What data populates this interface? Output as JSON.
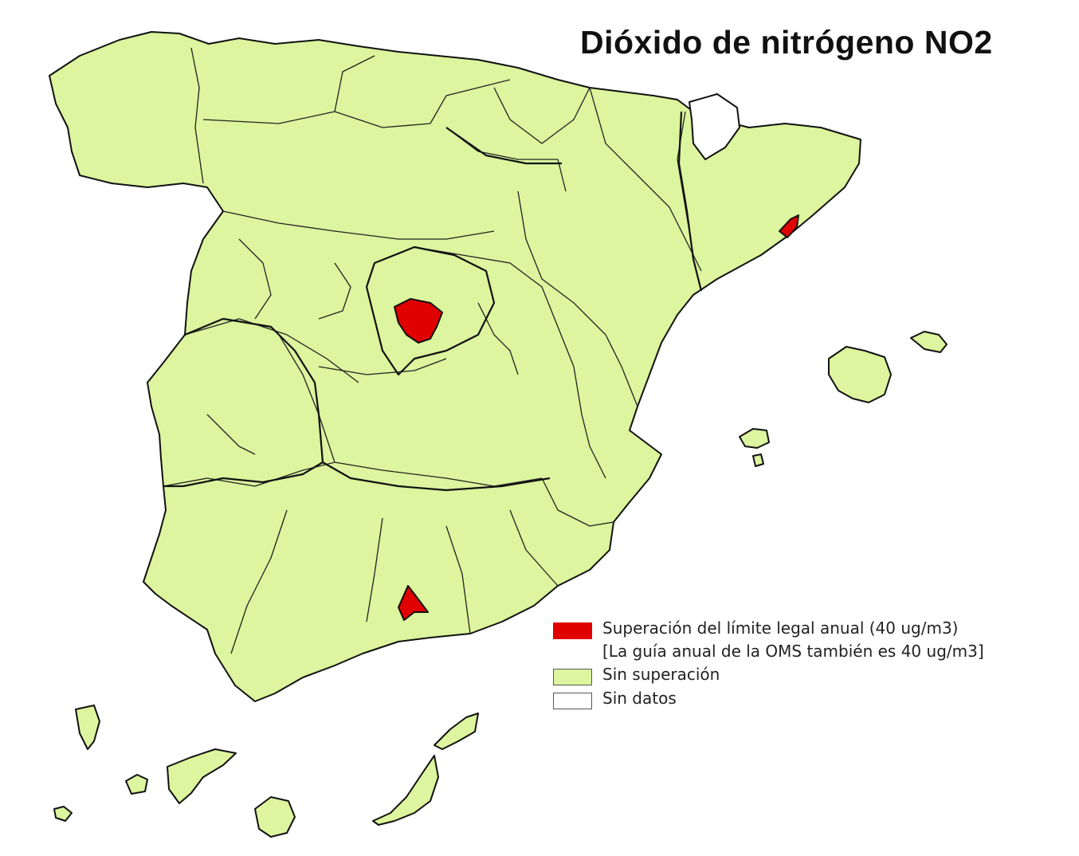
{
  "map": {
    "title": "Dióxido de nitrógeno NO2",
    "colors": {
      "exceed": "#e00000",
      "no_exceed": "#dcf59e",
      "no_data": "#ffffff",
      "outline": "#111111"
    },
    "legend": [
      {
        "color": "#e00000",
        "label": "Superación del límite legal anual (40 ug/m3)"
      },
      {
        "color": null,
        "label": "[La guía anual de la OMS también es 40 ug/m3]"
      },
      {
        "color": "#dcf59e",
        "label": "Sin superación"
      },
      {
        "color": "#ffffff",
        "label": "Sin datos"
      }
    ],
    "exceedance_areas": [
      "Madrid",
      "Barcelona",
      "Granada"
    ],
    "no_data_areas": [
      "Andorra"
    ]
  }
}
